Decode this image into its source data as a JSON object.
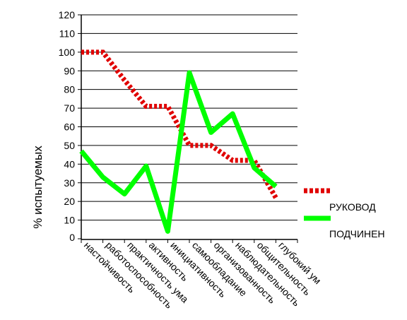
{
  "chart_data": {
    "type": "line",
    "title": "",
    "xlabel": "",
    "ylabel": "% испытуемых",
    "ylim": [
      0,
      120
    ],
    "yticks": [
      0,
      10,
      20,
      30,
      40,
      50,
      60,
      70,
      80,
      90,
      100,
      110,
      120
    ],
    "grid": "horizontal",
    "legend_position": "right",
    "categories": [
      "настойчивость",
      "работоспособность",
      "практичность ума",
      "активность",
      "инициативность",
      "самообладание",
      "организованность",
      "наблюдательность",
      "общительность",
      "глубокий ум"
    ],
    "series": [
      {
        "name": "РУКОВОД",
        "values": [
          100,
          100,
          85,
          71,
          71,
          50,
          50,
          42,
          42,
          22
        ],
        "color": "#e00000",
        "style": "dotted"
      },
      {
        "name": "ПОДЧИНЕН",
        "values": [
          47,
          33,
          24,
          39,
          4,
          89,
          57,
          67,
          38,
          28
        ],
        "color": "#00ff00",
        "style": "solid"
      }
    ]
  }
}
